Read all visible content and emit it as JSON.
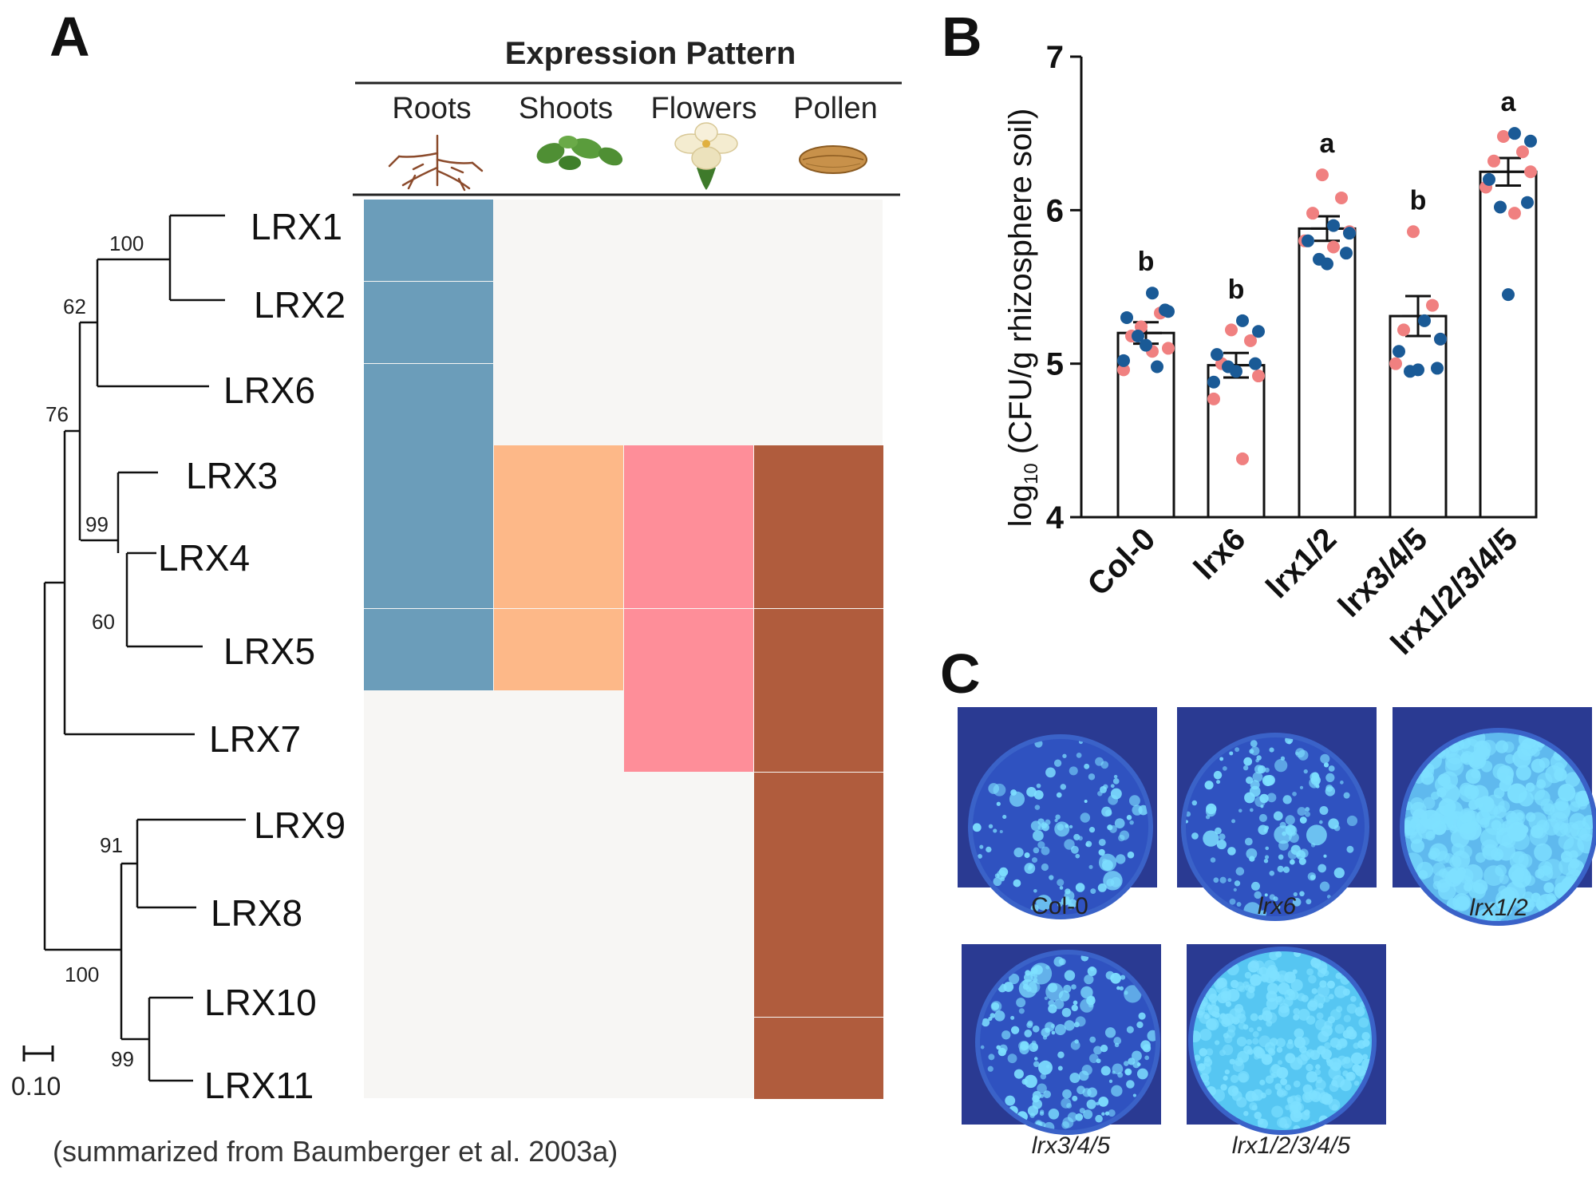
{
  "panels": {
    "a": "A",
    "b": "B",
    "c": "C"
  },
  "panel_a": {
    "header": "Expression Pattern",
    "columns": [
      "Roots",
      "Shoots",
      "Flowers",
      "Pollen"
    ],
    "genes": [
      "LRX1",
      "LRX2",
      "LRX6",
      "LRX3",
      "LRX4",
      "LRX5",
      "LRX7",
      "LRX9",
      "LRX8",
      "LRX10",
      "LRX11"
    ],
    "expression": [
      [
        1,
        0,
        0,
        0
      ],
      [
        1,
        0,
        0,
        0
      ],
      [
        1,
        0,
        0,
        0
      ],
      [
        1,
        1,
        1,
        1
      ],
      [
        1,
        1,
        1,
        1
      ],
      [
        1,
        1,
        1,
        1
      ],
      [
        0,
        0,
        1,
        1
      ],
      [
        0,
        0,
        0,
        1
      ],
      [
        0,
        0,
        0,
        1
      ],
      [
        0,
        0,
        0,
        1
      ],
      [
        0,
        0,
        0,
        1
      ]
    ],
    "colors": {
      "roots": "#6b9dba",
      "shoots": "#fdb888",
      "flowers": "#fe8e99",
      "pollen": "#b05c3d",
      "empty": "#f7f6f4"
    },
    "bootstrap": [
      "100",
      "62",
      "76",
      "99",
      "60",
      "91",
      "100",
      "99"
    ],
    "scale_label": "0.10",
    "note": "(summarized from Baumberger et al. 2003a)"
  },
  "chart_data": {
    "type": "bar",
    "categories": [
      "Col-0",
      "lrx6",
      "lrx1/2",
      "lrx3/4/5",
      "lrx1/2/3/4/5"
    ],
    "values": [
      5.2,
      4.99,
      5.88,
      5.31,
      6.25
    ],
    "sem": [
      0.07,
      0.08,
      0.08,
      0.13,
      0.09
    ],
    "significance": [
      "b",
      "b",
      "a",
      "b",
      "a"
    ],
    "ylabel_pre": "log",
    "ylabel_sub": "10",
    "ylabel_post": " (CFU/g rhizosphere soil)",
    "ylim": [
      4,
      7
    ],
    "yticks": [
      "4",
      "5",
      "6",
      "7"
    ],
    "colors": {
      "red": "#f08080",
      "blue": "#1a5a96"
    },
    "points": [
      {
        "red": [
          5.24,
          5.33,
          5.18,
          5.1,
          4.96,
          5.08
        ],
        "blue": [
          5.46,
          5.34,
          5.3,
          5.35,
          5.18,
          5.12,
          5.02,
          4.98
        ]
      },
      {
        "red": [
          5.22,
          5.15,
          5.0,
          4.92,
          4.77,
          4.38
        ],
        "blue": [
          5.28,
          5.21,
          5.06,
          5.0,
          4.98,
          4.95,
          4.88
        ]
      },
      {
        "red": [
          6.23,
          6.08,
          5.98,
          5.86,
          5.8,
          5.76
        ],
        "blue": [
          5.9,
          5.85,
          5.8,
          5.72,
          5.68,
          5.65
        ]
      },
      {
        "red": [
          5.86,
          5.38,
          5.22,
          5.16,
          5.0
        ],
        "blue": [
          5.28,
          5.16,
          5.08,
          4.97,
          4.95,
          4.96
        ]
      },
      {
        "red": [
          6.48,
          6.38,
          6.32,
          6.25,
          6.15,
          5.98
        ],
        "blue": [
          6.5,
          6.45,
          6.2,
          6.05,
          6.02,
          5.45
        ]
      }
    ]
  },
  "panel_c": {
    "plates": [
      {
        "label": "Col-0",
        "italic": false,
        "density": 0.35
      },
      {
        "label": "lrx6",
        "italic": true,
        "density": 0.45
      },
      {
        "label": "lrx1/2",
        "italic": true,
        "density": 1.0
      },
      {
        "label": "lrx3/4/5",
        "italic": true,
        "density": 0.6
      },
      {
        "label": "lrx1/2/3/4/5",
        "italic": true,
        "density": 1.2
      }
    ],
    "plate_bg": "#2a3a92",
    "colony_color": "#7ee0ff"
  }
}
